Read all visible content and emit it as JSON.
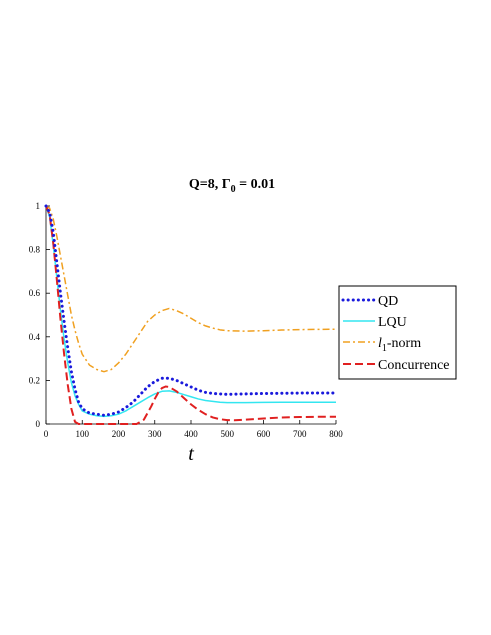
{
  "chart_data": {
    "type": "line",
    "title": "Q=8, Γ₀ = 0.01",
    "title_parts": {
      "main": "Q=8, Γ",
      "sub": "0",
      "rest": " = 0.01"
    },
    "xlabel": "t",
    "ylabel": "",
    "xlim": [
      0,
      800
    ],
    "ylim": [
      0,
      1
    ],
    "x_ticks": [
      0,
      100,
      200,
      300,
      400,
      500,
      600,
      700,
      800
    ],
    "y_ticks": [
      0,
      0.2,
      0.4,
      0.6,
      0.8,
      1
    ],
    "y_tick_labels": [
      "0",
      "0.2",
      "0.4",
      "0.6",
      "0.8",
      "1"
    ],
    "grid": false,
    "legend_position": "right",
    "series": [
      {
        "name": "QD",
        "color": "#1a1adc",
        "style": "dotted",
        "points": [
          [
            0,
            1
          ],
          [
            10,
            0.97
          ],
          [
            20,
            0.88
          ],
          [
            30,
            0.74
          ],
          [
            40,
            0.6
          ],
          [
            50,
            0.47
          ],
          [
            60,
            0.35
          ],
          [
            70,
            0.24
          ],
          [
            80,
            0.16
          ],
          [
            90,
            0.1
          ],
          [
            100,
            0.07
          ],
          [
            120,
            0.05
          ],
          [
            140,
            0.045
          ],
          [
            160,
            0.04
          ],
          [
            180,
            0.045
          ],
          [
            200,
            0.055
          ],
          [
            220,
            0.075
          ],
          [
            240,
            0.1
          ],
          [
            260,
            0.135
          ],
          [
            280,
            0.17
          ],
          [
            300,
            0.195
          ],
          [
            320,
            0.21
          ],
          [
            340,
            0.21
          ],
          [
            360,
            0.2
          ],
          [
            380,
            0.185
          ],
          [
            400,
            0.17
          ],
          [
            420,
            0.155
          ],
          [
            440,
            0.145
          ],
          [
            460,
            0.14
          ],
          [
            480,
            0.138
          ],
          [
            500,
            0.136
          ],
          [
            550,
            0.138
          ],
          [
            600,
            0.14
          ],
          [
            650,
            0.141
          ],
          [
            700,
            0.142
          ],
          [
            750,
            0.142
          ],
          [
            800,
            0.142
          ]
        ]
      },
      {
        "name": "LQU",
        "color": "#33e6f0",
        "style": "solid",
        "points": [
          [
            0,
            1
          ],
          [
            10,
            0.95
          ],
          [
            20,
            0.82
          ],
          [
            30,
            0.67
          ],
          [
            40,
            0.52
          ],
          [
            50,
            0.39
          ],
          [
            60,
            0.28
          ],
          [
            70,
            0.19
          ],
          [
            80,
            0.13
          ],
          [
            90,
            0.09
          ],
          [
            100,
            0.06
          ],
          [
            120,
            0.045
          ],
          [
            140,
            0.038
          ],
          [
            160,
            0.035
          ],
          [
            180,
            0.038
          ],
          [
            200,
            0.045
          ],
          [
            220,
            0.06
          ],
          [
            240,
            0.08
          ],
          [
            260,
            0.1
          ],
          [
            280,
            0.12
          ],
          [
            300,
            0.138
          ],
          [
            320,
            0.15
          ],
          [
            340,
            0.152
          ],
          [
            360,
            0.145
          ],
          [
            380,
            0.135
          ],
          [
            400,
            0.125
          ],
          [
            420,
            0.115
          ],
          [
            440,
            0.108
          ],
          [
            460,
            0.104
          ],
          [
            480,
            0.1
          ],
          [
            500,
            0.098
          ],
          [
            550,
            0.098
          ],
          [
            600,
            0.099
          ],
          [
            650,
            0.1
          ],
          [
            700,
            0.1
          ],
          [
            750,
            0.1
          ],
          [
            800,
            0.1
          ]
        ]
      },
      {
        "name": "l₁-norm",
        "label_parts": {
          "main": "l",
          "sub": "1",
          "rest": "-norm"
        },
        "color": "#f0a020",
        "style": "dashdot",
        "points": [
          [
            0,
            1
          ],
          [
            10,
            0.99
          ],
          [
            20,
            0.94
          ],
          [
            30,
            0.86
          ],
          [
            40,
            0.77
          ],
          [
            50,
            0.68
          ],
          [
            60,
            0.59
          ],
          [
            70,
            0.5
          ],
          [
            80,
            0.43
          ],
          [
            90,
            0.37
          ],
          [
            100,
            0.32
          ],
          [
            120,
            0.27
          ],
          [
            140,
            0.25
          ],
          [
            160,
            0.24
          ],
          [
            180,
            0.25
          ],
          [
            200,
            0.28
          ],
          [
            220,
            0.32
          ],
          [
            240,
            0.37
          ],
          [
            260,
            0.42
          ],
          [
            280,
            0.47
          ],
          [
            300,
            0.5
          ],
          [
            320,
            0.52
          ],
          [
            340,
            0.53
          ],
          [
            360,
            0.52
          ],
          [
            380,
            0.505
          ],
          [
            400,
            0.485
          ],
          [
            420,
            0.465
          ],
          [
            440,
            0.45
          ],
          [
            460,
            0.44
          ],
          [
            480,
            0.432
          ],
          [
            500,
            0.428
          ],
          [
            550,
            0.426
          ],
          [
            600,
            0.428
          ],
          [
            650,
            0.431
          ],
          [
            700,
            0.433
          ],
          [
            750,
            0.434
          ],
          [
            800,
            0.435
          ]
        ]
      },
      {
        "name": "Concurrence",
        "color": "#e02020",
        "style": "dashed",
        "points": [
          [
            0,
            1
          ],
          [
            10,
            0.96
          ],
          [
            20,
            0.83
          ],
          [
            30,
            0.66
          ],
          [
            40,
            0.48
          ],
          [
            50,
            0.32
          ],
          [
            60,
            0.18
          ],
          [
            70,
            0.07
          ],
          [
            80,
            0.01
          ],
          [
            90,
            0
          ],
          [
            100,
            0
          ],
          [
            150,
            0
          ],
          [
            200,
            0
          ],
          [
            250,
            0
          ],
          [
            270,
            0.02
          ],
          [
            280,
            0.05
          ],
          [
            290,
            0.08
          ],
          [
            300,
            0.115
          ],
          [
            310,
            0.145
          ],
          [
            320,
            0.165
          ],
          [
            330,
            0.172
          ],
          [
            340,
            0.17
          ],
          [
            360,
            0.15
          ],
          [
            380,
            0.12
          ],
          [
            400,
            0.09
          ],
          [
            420,
            0.065
          ],
          [
            440,
            0.045
          ],
          [
            460,
            0.03
          ],
          [
            480,
            0.022
          ],
          [
            500,
            0.018
          ],
          [
            520,
            0.017
          ],
          [
            550,
            0.02
          ],
          [
            600,
            0.025
          ],
          [
            650,
            0.03
          ],
          [
            700,
            0.032
          ],
          [
            750,
            0.033
          ],
          [
            800,
            0.033
          ]
        ]
      }
    ]
  }
}
